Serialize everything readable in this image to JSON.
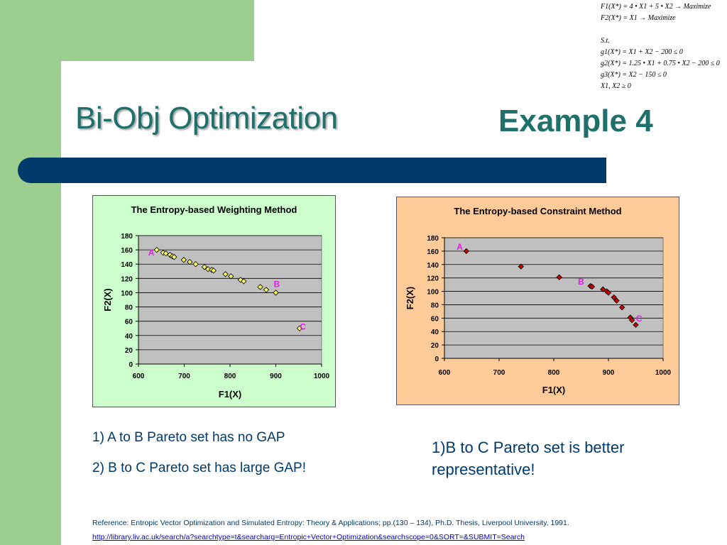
{
  "slide": {
    "title_left": "Bi-Obj Optimization",
    "title_right": "Example 4",
    "equations": [
      "F1(X*) = 4 • X1 + 5 • X2 → Maximize",
      "F2(X*) = X1 → Maximize",
      "",
      "S.t.",
      "g1(X*) = X1 + X2 − 200 ≤ 0",
      "g2(X*) = 1.25 • X1 + 0.75 • X2 − 200 ≤ 0",
      "g3(X*) = X2 − 150 ≤ 0",
      "X1, X2 ≥ 0"
    ],
    "bullets_left": [
      "1) A to B Pareto set has no GAP",
      "2) B to C Pareto set has large GAP!"
    ],
    "note_right": "1)B to C Pareto set is better representative!",
    "reference": "Reference: Entropic Vector Optimization and Simulated Entropy: Theory & Applications; pp.(130 – 134), Ph.D. Thesis, Liverpool University, 1991.",
    "link": "http://library.liv.ac.uk/search/a?searchtype=t&searcharg=Entropic+Vector+Optimization&searchscope=0&SORT=&SUBMIT=Search",
    "colors": {
      "green": "#9ccf8f",
      "title": "#1f6f6a",
      "bar": "#003a6b",
      "text": "#003a6b",
      "label": "#e81be8"
    }
  },
  "chart_data": [
    {
      "type": "scatter",
      "title": "The Entropy-based Weighting Method",
      "xlabel": "F1(X)",
      "ylabel": "F2(X)",
      "xlim": [
        600,
        1000
      ],
      "ylim": [
        0,
        180
      ],
      "xticks": [
        600,
        700,
        800,
        900,
        1000
      ],
      "yticks": [
        0,
        20,
        40,
        60,
        80,
        100,
        120,
        140,
        160,
        180
      ],
      "grid": true,
      "background": "#ccffcc",
      "plot_background": "#c0c0c0",
      "marker": "diamond",
      "marker_color": "#ffff66",
      "series": [
        {
          "x": [
            640,
            654,
            660,
            669,
            674,
            678,
            699,
            712,
            725,
            744,
            752,
            760,
            764,
            790,
            802,
            823,
            830,
            866,
            879,
            900,
            952
          ],
          "y": [
            160,
            156,
            155,
            153,
            151,
            150,
            146,
            143,
            140,
            136,
            133,
            132,
            131,
            126,
            123,
            118,
            116,
            108,
            104,
            100,
            50
          ]
        }
      ],
      "annotations": [
        {
          "text": "A",
          "x": 628,
          "y": 152
        },
        {
          "text": "B",
          "x": 902,
          "y": 108
        },
        {
          "text": "C",
          "x": 959,
          "y": 48
        }
      ]
    },
    {
      "type": "scatter",
      "title": "The Entropy-based Constraint Method",
      "xlabel": "F1(X)",
      "ylabel": "F2(X)",
      "xlim": [
        600,
        1000
      ],
      "ylim": [
        0,
        180
      ],
      "xticks": [
        600,
        700,
        800,
        900,
        1000
      ],
      "yticks": [
        0,
        20,
        40,
        60,
        80,
        100,
        120,
        140,
        160,
        180
      ],
      "grid": true,
      "background": "#ffcc99",
      "plot_background": "#c0c0c0",
      "marker": "diamond",
      "marker_color": "#cc0000",
      "series": [
        {
          "x": [
            640,
            740,
            810,
            867,
            870,
            890,
            897,
            900,
            910,
            915,
            925,
            940,
            943,
            950
          ],
          "y": [
            160,
            137,
            121,
            108,
            107,
            103,
            100,
            98,
            91,
            86,
            76,
            61,
            57,
            50
          ]
        }
      ],
      "annotations": [
        {
          "text": "A",
          "x": 628,
          "y": 162
        },
        {
          "text": "B",
          "x": 850,
          "y": 110
        },
        {
          "text": "C",
          "x": 956,
          "y": 55
        }
      ]
    }
  ]
}
